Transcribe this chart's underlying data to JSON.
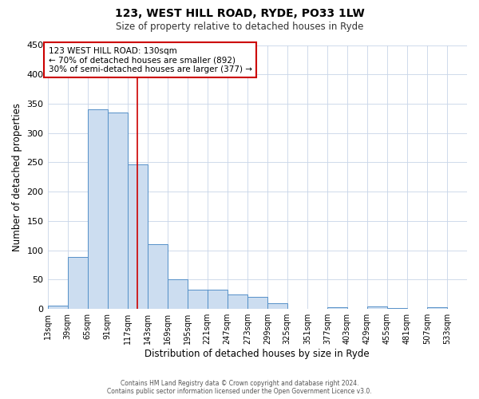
{
  "title": "123, WEST HILL ROAD, RYDE, PO33 1LW",
  "subtitle": "Size of property relative to detached houses in Ryde",
  "xlabel": "Distribution of detached houses by size in Ryde",
  "ylabel": "Number of detached properties",
  "bar_color": "#ccddf0",
  "bar_edge_color": "#5590c8",
  "bin_edges": [
    13,
    39,
    65,
    91,
    117,
    143,
    169,
    195,
    221,
    247,
    273,
    299,
    325,
    351,
    377,
    403,
    429,
    455,
    481,
    507,
    533
  ],
  "bar_heights": [
    6,
    89,
    341,
    335,
    246,
    110,
    50,
    33,
    33,
    25,
    21,
    10,
    0,
    0,
    3,
    0,
    5,
    2,
    0,
    3
  ],
  "property_line_x": 130,
  "property_line_color": "#cc0000",
  "annotation_text": "123 WEST HILL ROAD: 130sqm\n← 70% of detached houses are smaller (892)\n30% of semi-detached houses are larger (377) →",
  "annotation_box_color": "#ffffff",
  "annotation_box_edge_color": "#cc0000",
  "ylim": [
    0,
    450
  ],
  "xlim": [
    13,
    559
  ],
  "tick_labels": [
    "13sqm",
    "39sqm",
    "65sqm",
    "91sqm",
    "117sqm",
    "143sqm",
    "169sqm",
    "195sqm",
    "221sqm",
    "247sqm",
    "273sqm",
    "299sqm",
    "325sqm",
    "351sqm",
    "377sqm",
    "403sqm",
    "429sqm",
    "455sqm",
    "481sqm",
    "507sqm",
    "533sqm"
  ],
  "footer_line1": "Contains HM Land Registry data © Crown copyright and database right 2024.",
  "footer_line2": "Contains public sector information licensed under the Open Government Licence v3.0.",
  "background_color": "#ffffff",
  "grid_color": "#c8d4e8"
}
